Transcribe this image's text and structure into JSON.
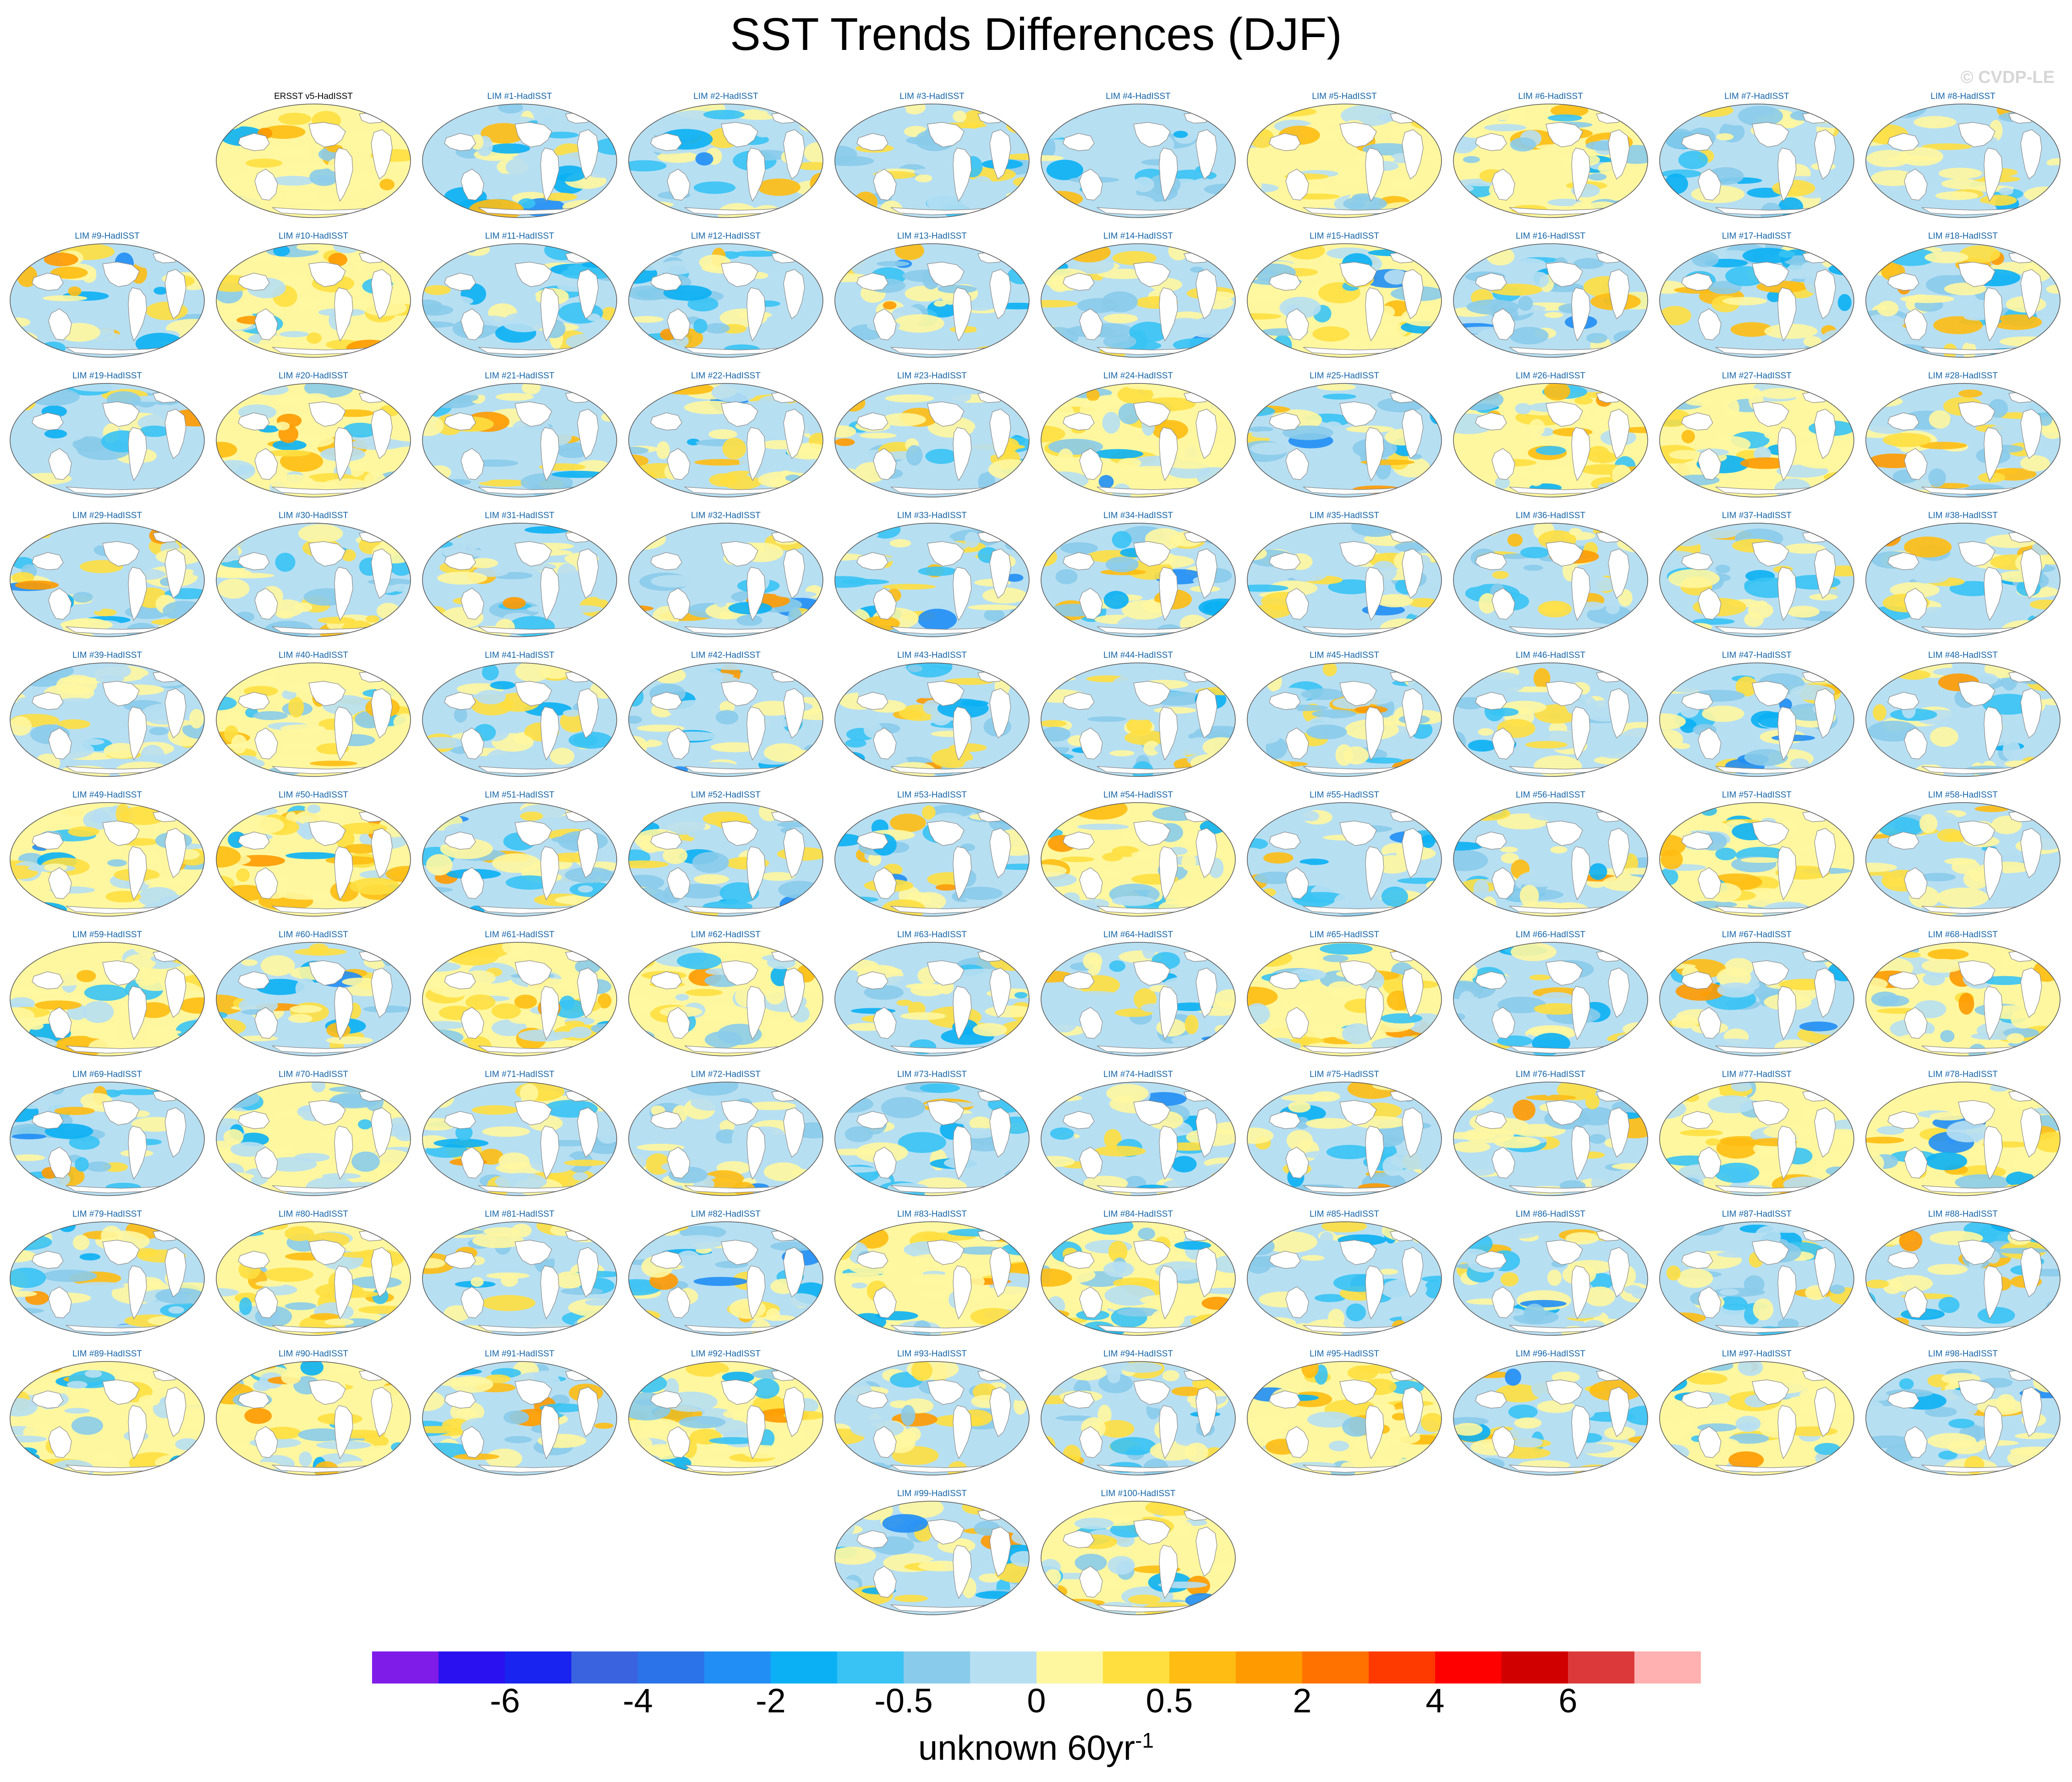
{
  "title": "SST Trends Differences (DJF)",
  "watermark": "© CVDP-LE",
  "chart_data": {
    "type": "heatmap",
    "title": "SST Trends Differences (DJF)",
    "subtitle": "",
    "colorbar": {
      "label_main": "unknown 60yr",
      "label_sup": "-1",
      "tick_labels": [
        "-6",
        "-4",
        "-2",
        "-0.5",
        "0",
        "0.5",
        "2",
        "4",
        "6"
      ],
      "colors": [
        "#7f1ce8",
        "#2a12f0",
        "#1a24f0",
        "#3a63e0",
        "#2b73e8",
        "#208ef5",
        "#0bb0f4",
        "#38c3f4",
        "#89cbea",
        "#b7dff2",
        "#fff7a0",
        "#ffdf40",
        "#ffbc12",
        "#ff9a00",
        "#ff7200",
        "#ff3a00",
        "#ff0000",
        "#d10000",
        "#dc3a3a",
        "#ffb0b0"
      ]
    },
    "panels": [
      {
        "label": "ERSST v5-HadISST",
        "kind": "observations",
        "warm": 0.78
      },
      {
        "label": "LIM #1-HadISST",
        "warm": 0.32
      },
      {
        "label": "LIM #2-HadISST",
        "warm": 0.34
      },
      {
        "label": "LIM #3-HadISST",
        "warm": 0.3
      },
      {
        "label": "LIM #4-HadISST",
        "warm": 0.18
      },
      {
        "label": "LIM #5-HadISST",
        "warm": 0.62
      },
      {
        "label": "LIM #6-HadISST",
        "warm": 0.52
      },
      {
        "label": "LIM #7-HadISST",
        "warm": 0.3
      },
      {
        "label": "LIM #8-HadISST",
        "warm": 0.46
      },
      {
        "label": "LIM #9-HadISST",
        "warm": 0.45
      },
      {
        "label": "LIM #10-HadISST",
        "warm": 0.7
      },
      {
        "label": "LIM #11-HadISST",
        "warm": 0.42
      },
      {
        "label": "LIM #12-HadISST",
        "warm": 0.4
      },
      {
        "label": "LIM #13-HadISST",
        "warm": 0.3
      },
      {
        "label": "LIM #14-HadISST",
        "warm": 0.48
      },
      {
        "label": "LIM #15-HadISST",
        "warm": 0.55
      },
      {
        "label": "LIM #16-HadISST",
        "warm": 0.38
      },
      {
        "label": "LIM #17-HadISST",
        "warm": 0.36
      },
      {
        "label": "LIM #18-HadISST",
        "warm": 0.4
      },
      {
        "label": "LIM #19-HadISST",
        "warm": 0.3
      },
      {
        "label": "LIM #20-HadISST",
        "warm": 0.55
      },
      {
        "label": "LIM #21-HadISST",
        "warm": 0.4
      },
      {
        "label": "LIM #22-HadISST",
        "warm": 0.5
      },
      {
        "label": "LIM #23-HadISST",
        "warm": 0.45
      },
      {
        "label": "LIM #24-HadISST",
        "warm": 0.68
      },
      {
        "label": "LIM #25-HadISST",
        "warm": 0.15
      },
      {
        "label": "LIM #26-HadISST",
        "warm": 0.55
      },
      {
        "label": "LIM #27-HadISST",
        "warm": 0.6
      },
      {
        "label": "LIM #28-HadISST",
        "warm": 0.45
      },
      {
        "label": "LIM #29-HadISST",
        "warm": 0.42
      },
      {
        "label": "LIM #30-HadISST",
        "warm": 0.48
      },
      {
        "label": "LIM #31-HadISST",
        "warm": 0.38
      },
      {
        "label": "LIM #32-HadISST",
        "warm": 0.35
      },
      {
        "label": "LIM #33-HadISST",
        "warm": 0.36
      },
      {
        "label": "LIM #34-HadISST",
        "warm": 0.5
      },
      {
        "label": "LIM #35-HadISST",
        "warm": 0.46
      },
      {
        "label": "LIM #36-HadISST",
        "warm": 0.4
      },
      {
        "label": "LIM #37-HadISST",
        "warm": 0.42
      },
      {
        "label": "LIM #38-HadISST",
        "warm": 0.38
      },
      {
        "label": "LIM #39-HadISST",
        "warm": 0.5
      },
      {
        "label": "LIM #40-HadISST",
        "warm": 0.58
      },
      {
        "label": "LIM #41-HadISST",
        "warm": 0.38
      },
      {
        "label": "LIM #42-HadISST",
        "warm": 0.42
      },
      {
        "label": "LIM #43-HadISST",
        "warm": 0.32
      },
      {
        "label": "LIM #44-HadISST",
        "warm": 0.44
      },
      {
        "label": "LIM #45-HadISST",
        "warm": 0.4
      },
      {
        "label": "LIM #46-HadISST",
        "warm": 0.36
      },
      {
        "label": "LIM #47-HadISST",
        "warm": 0.38
      },
      {
        "label": "LIM #48-HadISST",
        "warm": 0.48
      },
      {
        "label": "LIM #49-HadISST",
        "warm": 0.52
      },
      {
        "label": "LIM #50-HadISST",
        "warm": 0.72
      },
      {
        "label": "LIM #51-HadISST",
        "warm": 0.5
      },
      {
        "label": "LIM #52-HadISST",
        "warm": 0.46
      },
      {
        "label": "LIM #53-HadISST",
        "warm": 0.38
      },
      {
        "label": "LIM #54-HadISST",
        "warm": 0.66
      },
      {
        "label": "LIM #55-HadISST",
        "warm": 0.44
      },
      {
        "label": "LIM #56-HadISST",
        "warm": 0.4
      },
      {
        "label": "LIM #57-HadISST",
        "warm": 0.56
      },
      {
        "label": "LIM #58-HadISST",
        "warm": 0.4
      },
      {
        "label": "LIM #59-HadISST",
        "warm": 0.55
      },
      {
        "label": "LIM #60-HadISST",
        "warm": 0.5
      },
      {
        "label": "LIM #61-HadISST",
        "warm": 0.52
      },
      {
        "label": "LIM #62-HadISST",
        "warm": 0.55
      },
      {
        "label": "LIM #63-HadISST",
        "warm": 0.5
      },
      {
        "label": "LIM #64-HadISST",
        "warm": 0.42
      },
      {
        "label": "LIM #65-HadISST",
        "warm": 0.56
      },
      {
        "label": "LIM #66-HadISST",
        "warm": 0.44
      },
      {
        "label": "LIM #67-HadISST",
        "warm": 0.5
      },
      {
        "label": "LIM #68-HadISST",
        "warm": 0.58
      },
      {
        "label": "LIM #69-HadISST",
        "warm": 0.48
      },
      {
        "label": "LIM #70-HadISST",
        "warm": 0.52
      },
      {
        "label": "LIM #71-HadISST",
        "warm": 0.5
      },
      {
        "label": "LIM #72-HadISST",
        "warm": 0.48
      },
      {
        "label": "LIM #73-HadISST",
        "warm": 0.28
      },
      {
        "label": "LIM #74-HadISST",
        "warm": 0.4
      },
      {
        "label": "LIM #75-HadISST",
        "warm": 0.42
      },
      {
        "label": "LIM #76-HadISST",
        "warm": 0.46
      },
      {
        "label": "LIM #77-HadISST",
        "warm": 0.58
      },
      {
        "label": "LIM #78-HadISST",
        "warm": 0.52
      },
      {
        "label": "LIM #79-HadISST",
        "warm": 0.44
      },
      {
        "label": "LIM #80-HadISST",
        "warm": 0.55
      },
      {
        "label": "LIM #81-HadISST",
        "warm": 0.48
      },
      {
        "label": "LIM #82-HadISST",
        "warm": 0.5
      },
      {
        "label": "LIM #83-HadISST",
        "warm": 0.56
      },
      {
        "label": "LIM #84-HadISST",
        "warm": 0.54
      },
      {
        "label": "LIM #85-HadISST",
        "warm": 0.4
      },
      {
        "label": "LIM #86-HadISST",
        "warm": 0.38
      },
      {
        "label": "LIM #87-HadISST",
        "warm": 0.3
      },
      {
        "label": "LIM #88-HadISST",
        "warm": 0.46
      },
      {
        "label": "LIM #89-HadISST",
        "warm": 0.56
      },
      {
        "label": "LIM #90-HadISST",
        "warm": 0.55
      },
      {
        "label": "LIM #91-HadISST",
        "warm": 0.4
      },
      {
        "label": "LIM #92-HadISST",
        "warm": 0.52
      },
      {
        "label": "LIM #93-HadISST",
        "warm": 0.42
      },
      {
        "label": "LIM #94-HadISST",
        "warm": 0.48
      },
      {
        "label": "LIM #95-HadISST",
        "warm": 0.66
      },
      {
        "label": "LIM #96-HadISST",
        "warm": 0.4
      },
      {
        "label": "LIM #97-HadISST",
        "warm": 0.52
      },
      {
        "label": "LIM #98-HadISST",
        "warm": 0.48
      },
      {
        "label": "LIM #99-HadISST",
        "warm": 0.42
      },
      {
        "label": "LIM #100-HadISST",
        "warm": 0.56
      }
    ]
  }
}
